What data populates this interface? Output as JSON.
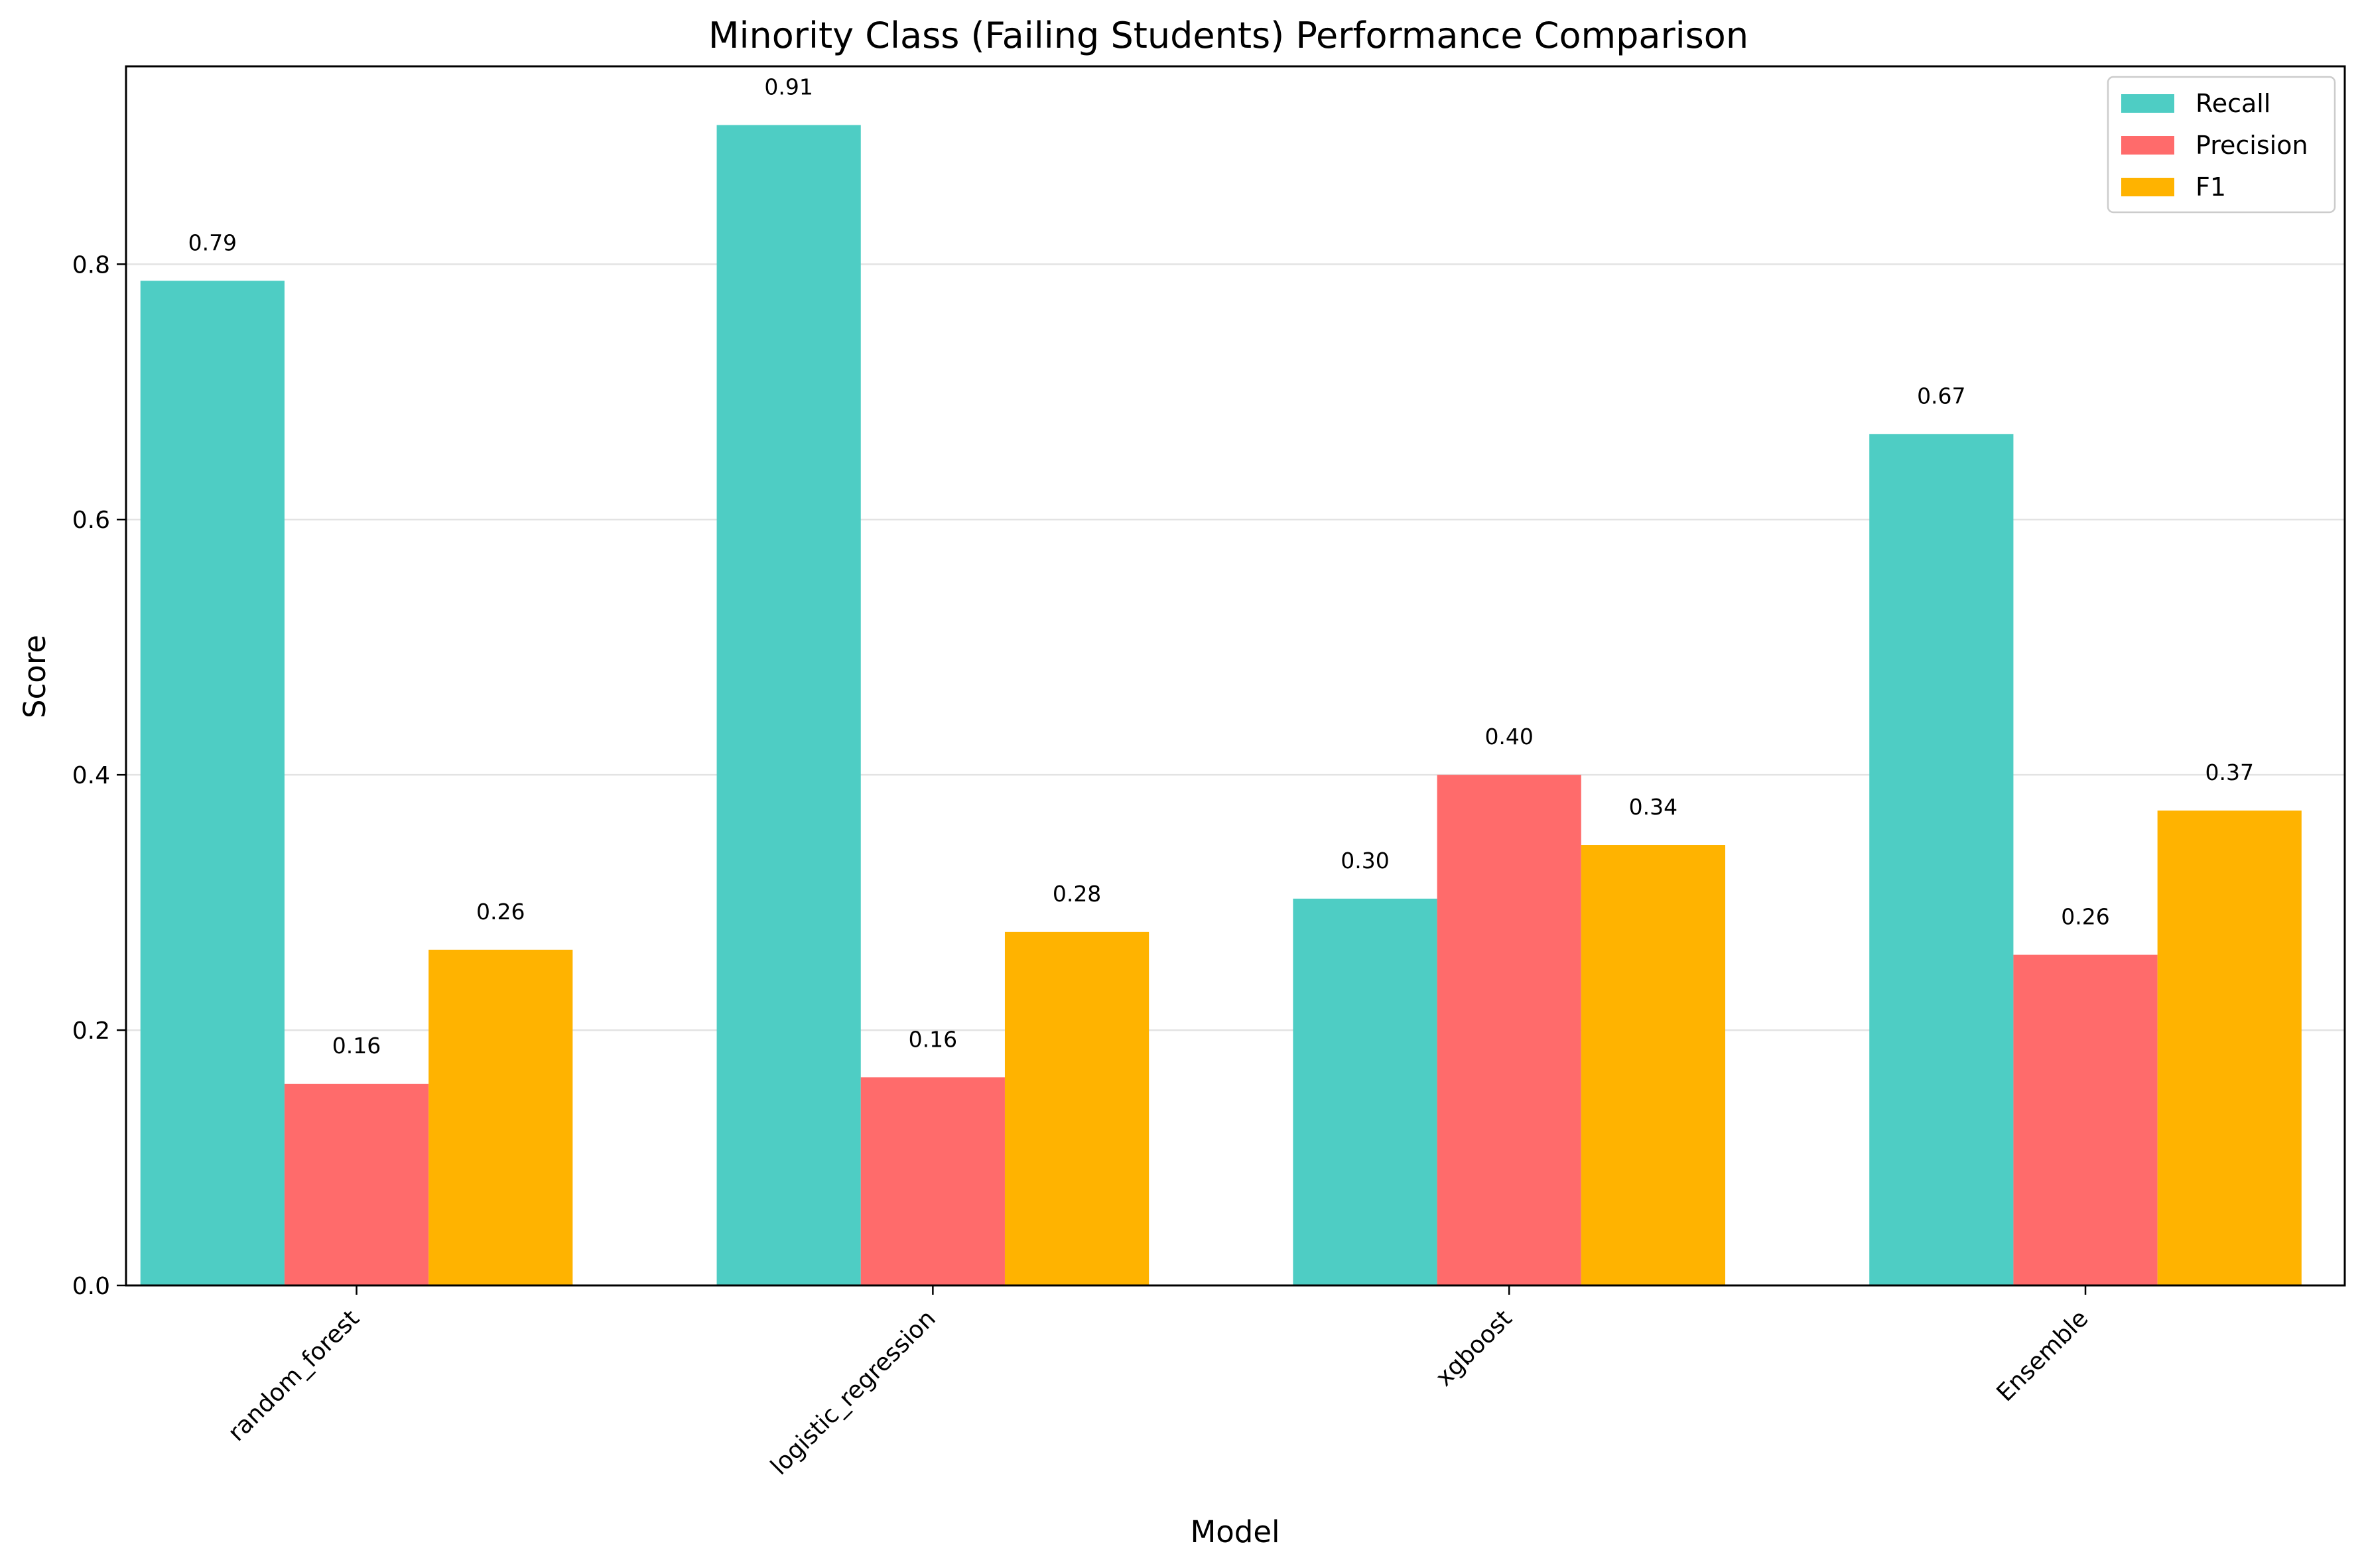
{
  "chart_data": {
    "type": "bar",
    "title": "Minority Class (Failing Students) Performance Comparison",
    "xlabel": "Model",
    "ylabel": "Score",
    "categories": [
      "random_forest",
      "logistic_regression",
      "xgboost",
      "Ensemble"
    ],
    "series": [
      {
        "name": "Recall",
        "values": [
          0.787,
          0.909,
          0.303,
          0.667
        ],
        "labels": [
          "0.79",
          "0.91",
          "0.30",
          "0.67"
        ],
        "color": "#4ECDC4"
      },
      {
        "name": "Precision",
        "values": [
          0.158,
          0.163,
          0.4,
          0.259
        ],
        "labels": [
          "0.16",
          "0.16",
          "0.40",
          "0.26"
        ],
        "color": "#FF6B6B"
      },
      {
        "name": "F1",
        "values": [
          0.263,
          0.277,
          0.345,
          0.372
        ],
        "labels": [
          "0.26",
          "0.28",
          "0.34",
          "0.37"
        ],
        "color": "#FFB300"
      }
    ],
    "ylim": [
      0,
      0.955
    ],
    "yticks": [
      0.0,
      0.2,
      0.4,
      0.6,
      0.8
    ],
    "ytick_labels": [
      "0.0",
      "0.2",
      "0.4",
      "0.6",
      "0.8"
    ],
    "grid": "horizontal",
    "legend_position": "top-right"
  }
}
